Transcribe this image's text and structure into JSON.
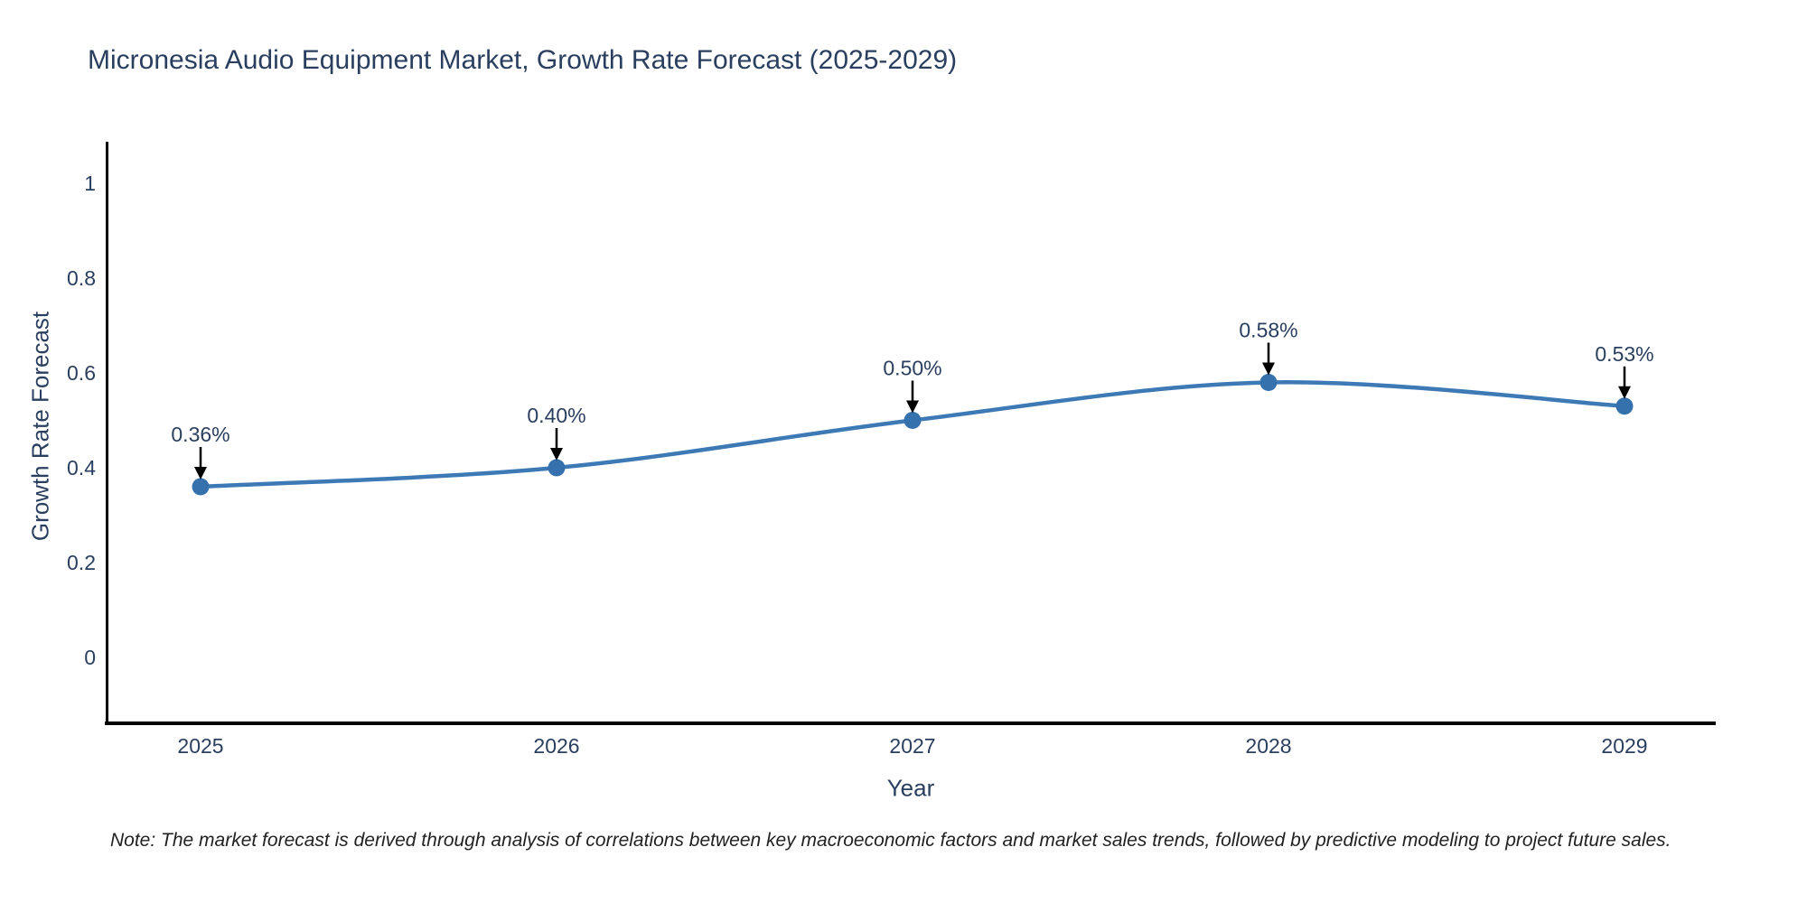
{
  "title": "Micronesia Audio Equipment Market, Growth Rate Forecast (2025-2029)",
  "note": "Note: The market forecast is derived through analysis of correlations between key macroeconomic factors and market sales trends, followed by predictive modeling to project future sales.",
  "chart_data": {
    "type": "line",
    "title": "Micronesia Audio Equipment Market, Growth Rate Forecast (2025-2029)",
    "xlabel": "Year",
    "ylabel": "Growth Rate Forecast",
    "categories": [
      "2025",
      "2026",
      "2027",
      "2028",
      "2029"
    ],
    "series": [
      {
        "name": "Growth Rate Forecast",
        "values": [
          0.36,
          0.4,
          0.5,
          0.58,
          0.53
        ],
        "point_labels": [
          "0.36%",
          "0.40%",
          "0.50%",
          "0.58%",
          "0.53%"
        ]
      }
    ],
    "ytick_values": [
      0,
      0.2,
      0.4,
      0.6,
      0.8,
      1
    ],
    "ytick_labels": [
      "0",
      "0.2",
      "0.4",
      "0.6",
      "0.8",
      "1"
    ],
    "ylim": [
      -0.14,
      1.09
    ],
    "grid": false,
    "legend_position": "none",
    "line_shape": "spline",
    "annotations_have_arrows": true,
    "colors": {
      "line": "#3d7ab5",
      "marker": "#3471ad",
      "axis": "#000000",
      "text": "#2a3f5f",
      "arrow": "#000000",
      "background": "#ffffff"
    }
  }
}
